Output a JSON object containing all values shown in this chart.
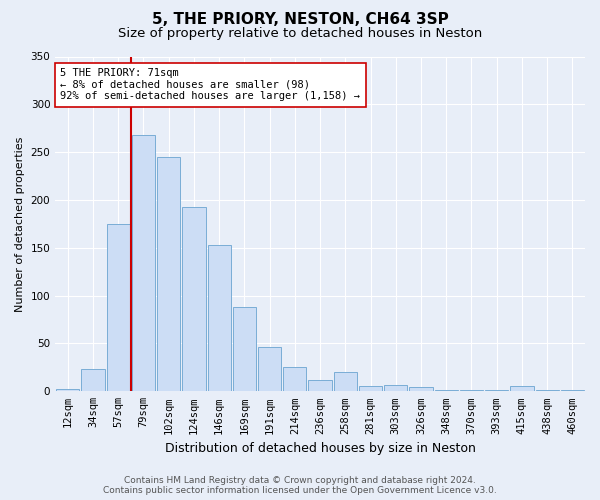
{
  "title1": "5, THE PRIORY, NESTON, CH64 3SP",
  "title2": "Size of property relative to detached houses in Neston",
  "xlabel": "Distribution of detached houses by size in Neston",
  "ylabel": "Number of detached properties",
  "categories": [
    "12sqm",
    "34sqm",
    "57sqm",
    "79sqm",
    "102sqm",
    "124sqm",
    "146sqm",
    "169sqm",
    "191sqm",
    "214sqm",
    "236sqm",
    "258sqm",
    "281sqm",
    "303sqm",
    "326sqm",
    "348sqm",
    "370sqm",
    "393sqm",
    "415sqm",
    "438sqm",
    "460sqm"
  ],
  "values": [
    2,
    23,
    175,
    268,
    245,
    193,
    153,
    88,
    46,
    25,
    12,
    20,
    6,
    7,
    4,
    1,
    1,
    1,
    6,
    1,
    1
  ],
  "bar_color": "#ccddf5",
  "bar_edge_color": "#7aadd6",
  "vline_x": 2.5,
  "vline_color": "#cc0000",
  "annotation_text": "5 THE PRIORY: 71sqm\n← 8% of detached houses are smaller (98)\n92% of semi-detached houses are larger (1,158) →",
  "annotation_box_color": "#ffffff",
  "annotation_box_edge": "#cc0000",
  "ylim": [
    0,
    350
  ],
  "yticks": [
    0,
    50,
    100,
    150,
    200,
    250,
    300,
    350
  ],
  "background_color": "#e8eef8",
  "grid_color": "#ffffff",
  "footer1": "Contains HM Land Registry data © Crown copyright and database right 2024.",
  "footer2": "Contains public sector information licensed under the Open Government Licence v3.0.",
  "title1_fontsize": 11,
  "title2_fontsize": 9.5,
  "xlabel_fontsize": 9,
  "ylabel_fontsize": 8,
  "tick_fontsize": 7.5,
  "annot_fontsize": 7.5,
  "footer_fontsize": 6.5
}
